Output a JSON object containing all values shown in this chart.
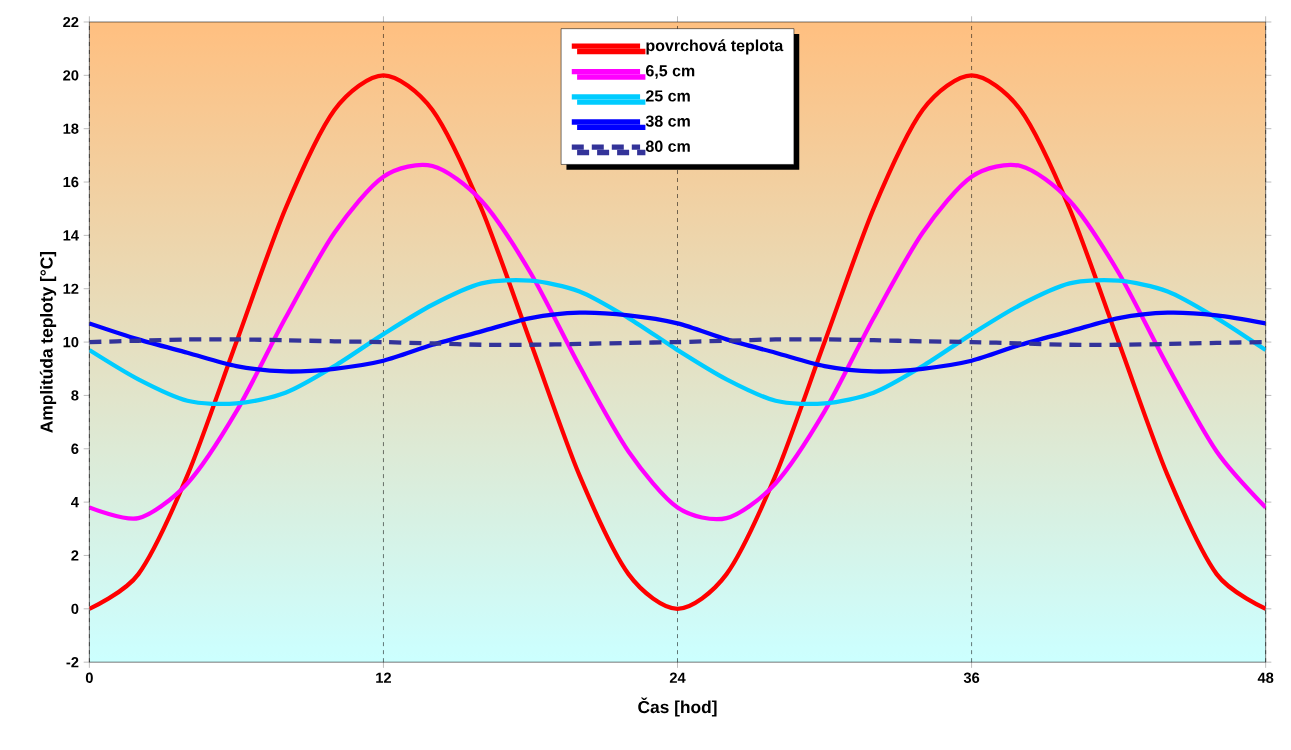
{
  "chart_data": {
    "type": "line",
    "xlabel": "Čas [hod]",
    "ylabel": "Amplitúda teploty [°C]",
    "x": [
      0,
      2,
      4,
      6,
      8,
      10,
      12,
      14,
      16,
      18,
      20,
      22,
      24,
      26,
      28,
      30,
      32,
      34,
      36,
      38,
      40,
      42,
      44,
      46,
      48
    ],
    "series": [
      {
        "name": "povrchová teplota",
        "color": "#ff0000",
        "values": [
          0,
          1.3,
          5,
          10,
          15,
          18.7,
          20,
          18.7,
          15,
          10,
          5,
          1.3,
          0,
          1.3,
          5,
          10,
          15,
          18.7,
          20,
          18.7,
          15,
          10,
          5,
          1.3,
          0
        ]
      },
      {
        "name": "6,5 cm",
        "color": "#ff00ff",
        "values": [
          3.8,
          3.4,
          4.7,
          7.4,
          10.9,
          14.1,
          16.2,
          16.6,
          15.3,
          12.6,
          9.1,
          5.9,
          3.8,
          3.4,
          4.7,
          7.4,
          10.9,
          14.1,
          16.2,
          16.6,
          15.3,
          12.6,
          9.1,
          5.9,
          3.8
        ]
      },
      {
        "name": "25 cm",
        "color": "#00ccff",
        "values": [
          9.7,
          8.6,
          7.8,
          7.7,
          8.1,
          9.1,
          10.3,
          11.4,
          12.2,
          12.3,
          11.9,
          10.9,
          9.7,
          8.6,
          7.8,
          7.7,
          8.1,
          9.1,
          10.3,
          11.4,
          12.2,
          12.3,
          11.9,
          10.9,
          9.7
        ]
      },
      {
        "name": "38 cm",
        "color": "#0000ff",
        "values": [
          10.7,
          10.1,
          9.6,
          9.1,
          8.9,
          9.0,
          9.3,
          9.9,
          10.4,
          10.9,
          11.1,
          11.0,
          10.7,
          10.1,
          9.6,
          9.1,
          8.9,
          9.0,
          9.3,
          9.9,
          10.4,
          10.9,
          11.1,
          11.0,
          10.7
        ]
      },
      {
        "name": "80 cm",
        "color": "#333399",
        "line_style": "dashed",
        "values": [
          10.0,
          10.05,
          10.1,
          10.1,
          10.07,
          10.03,
          10.0,
          9.95,
          9.9,
          9.9,
          9.93,
          9.97,
          10.0,
          10.05,
          10.1,
          10.1,
          10.07,
          10.03,
          10.0,
          9.95,
          9.9,
          9.9,
          9.93,
          9.97,
          10.0
        ]
      }
    ],
    "xlim": [
      0,
      48
    ],
    "xticks": [
      0,
      12,
      24,
      36,
      48
    ],
    "ylim": [
      -2,
      22
    ],
    "yticks": [
      -2,
      0,
      2,
      4,
      6,
      8,
      10,
      12,
      14,
      16,
      18,
      20,
      22
    ],
    "grid": "x",
    "legend": "top",
    "line_style": "solid",
    "marker": "none"
  }
}
